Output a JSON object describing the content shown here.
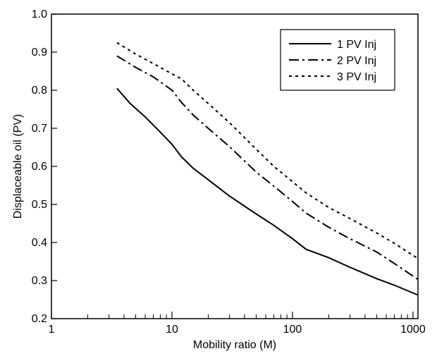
{
  "chart_data": {
    "type": "line",
    "xlabel": "Mobility ratio (M)",
    "ylabel": "Displaceable oil (PV)",
    "x_scale": "log",
    "xlim": [
      1,
      1100
    ],
    "ylim": [
      0.2,
      1.0
    ],
    "x_ticks": [
      1,
      10,
      100,
      1000
    ],
    "x_tick_labels": [
      "1",
      "10",
      "100",
      "1000"
    ],
    "y_ticks": [
      0.2,
      0.3,
      0.4,
      0.5,
      0.6,
      0.7,
      0.8,
      0.9,
      1.0
    ],
    "y_tick_labels": [
      "0.2",
      "0.3",
      "0.4",
      "0.5",
      "0.6",
      "0.7",
      "0.8",
      "0.9",
      "1.0"
    ],
    "grid": false,
    "legend_position": "top-right",
    "series": [
      {
        "name": "1 PV Inj",
        "line_style": "solid",
        "x": [
          3.5,
          4.5,
          6,
          8,
          10,
          12,
          15,
          20,
          30,
          50,
          70,
          100,
          130,
          200,
          300,
          500,
          700,
          1100
        ],
        "y": [
          0.805,
          0.765,
          0.73,
          0.69,
          0.658,
          0.625,
          0.595,
          0.565,
          0.522,
          0.475,
          0.445,
          0.41,
          0.382,
          0.36,
          0.335,
          0.305,
          0.288,
          0.262
        ]
      },
      {
        "name": "2 PV Inj",
        "line_style": "dash-dot",
        "x": [
          3.5,
          5,
          7,
          10,
          12,
          15,
          20,
          30,
          50,
          70,
          100,
          130,
          200,
          300,
          500,
          700,
          1100
        ],
        "y": [
          0.89,
          0.86,
          0.835,
          0.8,
          0.768,
          0.735,
          0.7,
          0.652,
          0.585,
          0.548,
          0.508,
          0.477,
          0.44,
          0.41,
          0.375,
          0.345,
          0.303
        ]
      },
      {
        "name": "3 PV Inj",
        "line_style": "dotted",
        "x": [
          3.5,
          5,
          7,
          10,
          12,
          15,
          20,
          30,
          50,
          70,
          100,
          130,
          200,
          300,
          500,
          700,
          1100
        ],
        "y": [
          0.925,
          0.895,
          0.87,
          0.843,
          0.83,
          0.8,
          0.765,
          0.715,
          0.645,
          0.6,
          0.56,
          0.53,
          0.492,
          0.463,
          0.425,
          0.398,
          0.358
        ]
      }
    ]
  }
}
